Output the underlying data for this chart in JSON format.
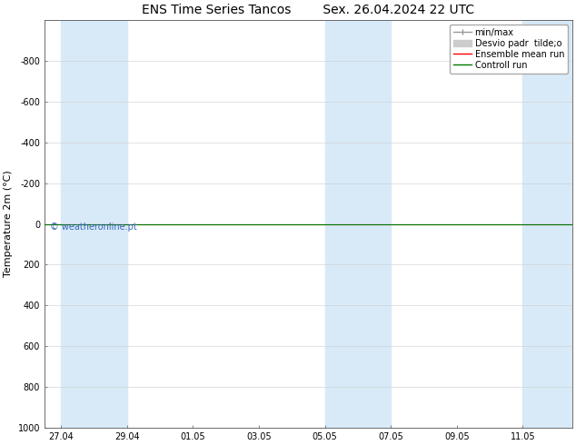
{
  "title_left": "ENS Time Series Tancos",
  "title_right": "Sex. 26.04.2024 22 UTC",
  "ylabel": "Temperature 2m (°C)",
  "background_color": "#ffffff",
  "plot_bg_color": "#ffffff",
  "ylim_bottom": 1000,
  "ylim_top": -1000,
  "yticks": [
    -800,
    -600,
    -400,
    -200,
    0,
    200,
    400,
    600,
    800,
    1000
  ],
  "xtick_labels": [
    "27.04",
    "29.04",
    "01.05",
    "03.05",
    "05.05",
    "07.05",
    "09.05",
    "11.05"
  ],
  "xtick_positions": [
    0,
    2,
    4,
    6,
    8,
    10,
    12,
    14
  ],
  "x_min": -0.5,
  "x_max": 15.5,
  "shaded_bands": [
    [
      0.0,
      1.0
    ],
    [
      1.0,
      2.0
    ],
    [
      8.0,
      9.0
    ],
    [
      9.0,
      10.0
    ],
    [
      14.0,
      15.5
    ]
  ],
  "shaded_color": "#d8eaf8",
  "line_color_control": "#007700",
  "line_color_ensemble": "#ff0000",
  "minmax_color": "#999999",
  "stddev_color": "#cccccc",
  "watermark_text": "© weatheronline.pt",
  "watermark_color": "#3366bb",
  "legend_labels": [
    "min/max",
    "Desvio padr  tilde;o",
    "Ensemble mean run",
    "Controll run"
  ],
  "legend_colors": [
    "#999999",
    "#cccccc",
    "#ff0000",
    "#007700"
  ],
  "title_fontsize": 10,
  "ylabel_fontsize": 8,
  "tick_fontsize": 7,
  "legend_fontsize": 7,
  "watermark_fontsize": 7
}
